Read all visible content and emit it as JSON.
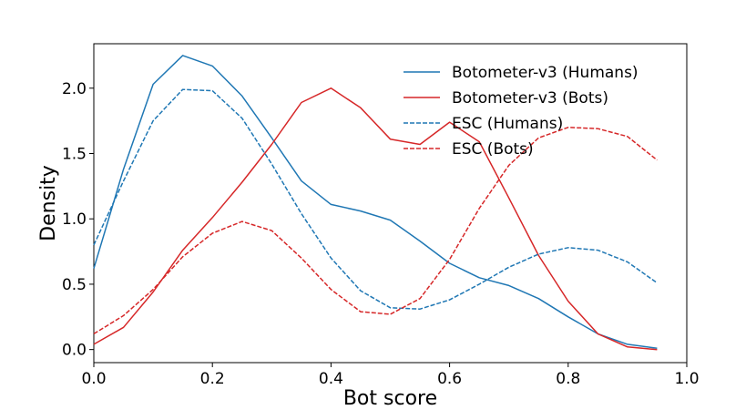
{
  "chart_data": {
    "type": "line",
    "xlabel": "Bot score",
    "ylabel": "Density",
    "xlim": [
      0.0,
      1.0
    ],
    "ylim": [
      -0.1,
      2.34
    ],
    "x_ticks": [
      0.0,
      0.2,
      0.4,
      0.6,
      0.8,
      1.0
    ],
    "x_tick_labels": [
      "0.0",
      "0.2",
      "0.4",
      "0.6",
      "0.8",
      "1.0"
    ],
    "y_ticks": [
      0.0,
      0.5,
      1.0,
      1.5,
      2.0
    ],
    "y_tick_labels": [
      "0.0",
      "0.5",
      "1.0",
      "1.5",
      "2.0"
    ],
    "grid": false,
    "legend_position": "top-right",
    "x": [
      0.0,
      0.05,
      0.1,
      0.15,
      0.2,
      0.25,
      0.3,
      0.35,
      0.4,
      0.45,
      0.5,
      0.55,
      0.6,
      0.65,
      0.7,
      0.75,
      0.8,
      0.85,
      0.9,
      0.95
    ],
    "series": [
      {
        "name": "Botometer-v3 (Humans)",
        "color": "#1f77b4",
        "style": "solid",
        "values": [
          0.62,
          1.38,
          2.03,
          2.25,
          2.17,
          1.94,
          1.62,
          1.29,
          1.11,
          1.06,
          0.99,
          0.83,
          0.66,
          0.55,
          0.49,
          0.39,
          0.25,
          0.12,
          0.04,
          0.01
        ]
      },
      {
        "name": "Botometer-v3 (Bots)",
        "color": "#d62728",
        "style": "solid",
        "values": [
          0.04,
          0.17,
          0.44,
          0.76,
          1.01,
          1.28,
          1.57,
          1.89,
          2.0,
          1.85,
          1.61,
          1.57,
          1.74,
          1.59,
          1.16,
          0.72,
          0.37,
          0.12,
          0.02,
          0.0
        ]
      },
      {
        "name": "ESC (Humans)",
        "color": "#1f77b4",
        "style": "dashed",
        "values": [
          0.8,
          1.29,
          1.75,
          1.99,
          1.98,
          1.77,
          1.42,
          1.04,
          0.7,
          0.45,
          0.32,
          0.31,
          0.38,
          0.5,
          0.63,
          0.73,
          0.78,
          0.76,
          0.67,
          0.51
        ]
      },
      {
        "name": "ESC (Bots)",
        "color": "#d62728",
        "style": "dashed",
        "values": [
          0.12,
          0.26,
          0.46,
          0.71,
          0.89,
          0.98,
          0.91,
          0.7,
          0.46,
          0.29,
          0.27,
          0.39,
          0.69,
          1.08,
          1.41,
          1.62,
          1.7,
          1.69,
          1.63,
          1.45
        ]
      }
    ]
  }
}
